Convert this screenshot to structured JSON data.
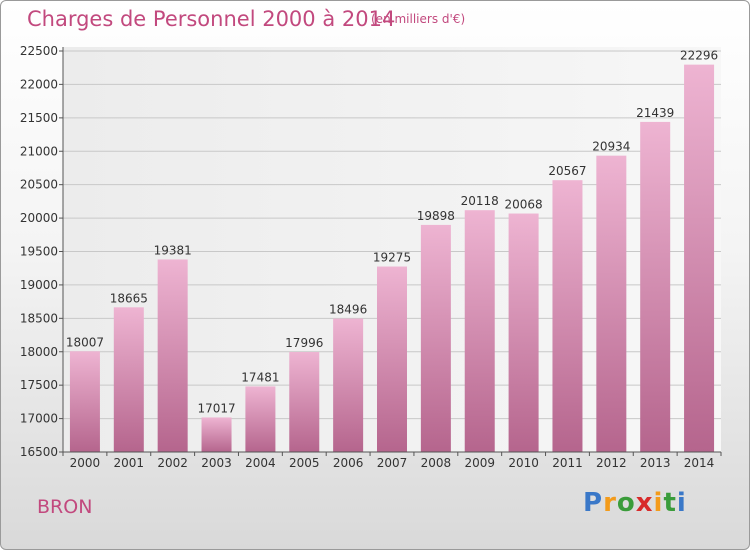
{
  "title": "Charges de Personnel 2000 à 2014",
  "subtitle": "(en milliers d'€)",
  "commune": "BRON",
  "logo": {
    "letters": [
      "P",
      "r",
      "o",
      "x",
      "i",
      "t",
      "i"
    ],
    "colors": [
      "#3a78c8",
      "#f39b1b",
      "#3a9c3a",
      "#d82b2b",
      "#f39b1b",
      "#3a9c3a",
      "#3a78c8"
    ]
  },
  "colors": {
    "accent": "#c2497e",
    "bar_top": "#eeb4d2",
    "bar_bottom": "#b5658d"
  },
  "chart_data": {
    "type": "bar",
    "title": "Charges de Personnel 2000 à 2014",
    "subtitle": "(en milliers d'€)",
    "categories": [
      "2000",
      "2001",
      "2002",
      "2003",
      "2004",
      "2005",
      "2006",
      "2007",
      "2008",
      "2009",
      "2010",
      "2011",
      "2012",
      "2013",
      "2014"
    ],
    "values": [
      18007,
      18665,
      19381,
      17017,
      17481,
      17996,
      18496,
      19275,
      19898,
      20118,
      20068,
      20567,
      20934,
      21439,
      22296
    ],
    "ylim": [
      16500,
      22500
    ],
    "yticks": [
      16500,
      17000,
      17500,
      18000,
      18500,
      19000,
      19500,
      20000,
      20500,
      21000,
      21500,
      22000,
      22500
    ],
    "grid": true
  }
}
